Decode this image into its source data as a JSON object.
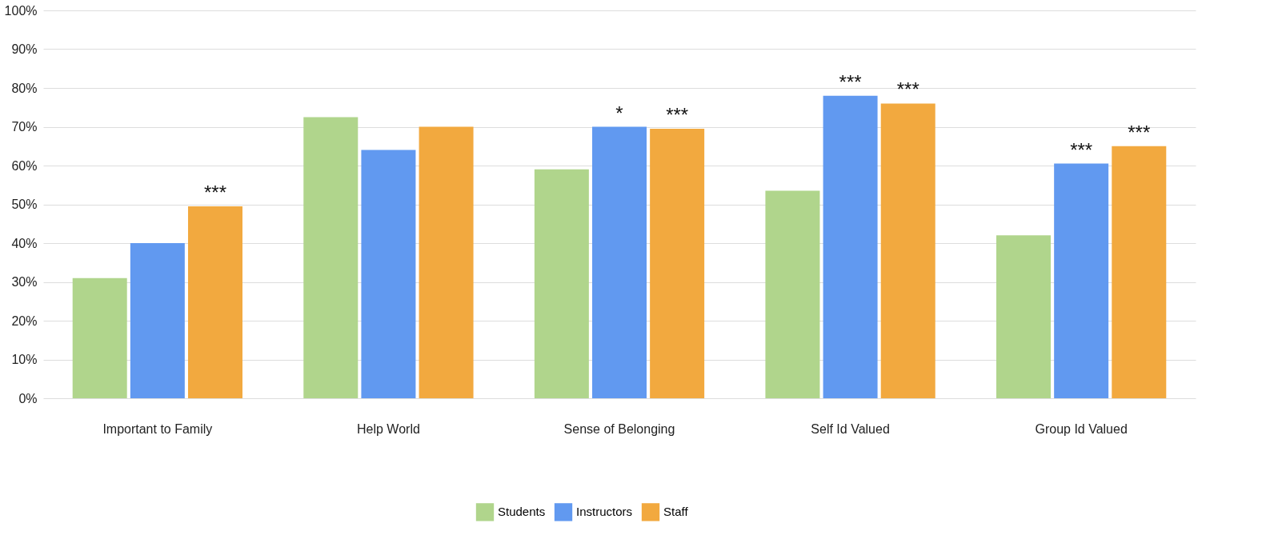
{
  "chart_data": {
    "type": "bar",
    "categories": [
      "Important to Family",
      "Help World",
      "Sense of Belonging",
      "Self Id Valued",
      "Group Id Valued"
    ],
    "series": [
      {
        "name": "Students",
        "color": "#b0d58c",
        "values": [
          31,
          72.5,
          59,
          53.5,
          42
        ]
      },
      {
        "name": "Instructors",
        "color": "#6199f0",
        "values": [
          40,
          64,
          70,
          78,
          60.5
        ],
        "value_labels": [
          null,
          null,
          "*",
          "***",
          "***"
        ]
      },
      {
        "name": "Staff",
        "color": "#f2a93f",
        "values": [
          49.5,
          70,
          69.5,
          76,
          65
        ],
        "value_labels": [
          "***",
          null,
          "***",
          "***",
          "***"
        ]
      }
    ],
    "ylim": [
      0,
      100
    ],
    "yticks": [
      {
        "value": 0,
        "label": "0%"
      },
      {
        "value": 10,
        "label": "10%"
      },
      {
        "value": 20,
        "label": "20%"
      },
      {
        "value": 30,
        "label": "30%"
      },
      {
        "value": 40,
        "label": "40%"
      },
      {
        "value": 50,
        "label": "50%"
      },
      {
        "value": 60,
        "label": "60%"
      },
      {
        "value": 70,
        "label": "70%"
      },
      {
        "value": 80,
        "label": "80%"
      },
      {
        "value": 90,
        "label": "90%"
      },
      {
        "value": 100,
        "label": "100%"
      }
    ],
    "grid": "y",
    "legend": "bottom"
  }
}
